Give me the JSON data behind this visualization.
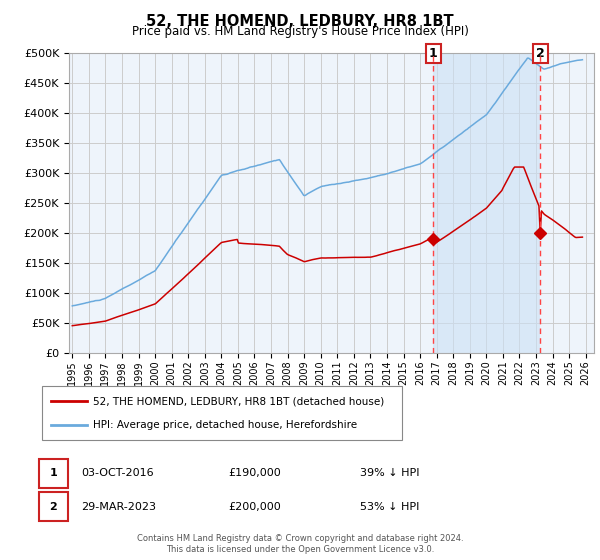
{
  "title": "52, THE HOMEND, LEDBURY, HR8 1BT",
  "subtitle": "Price paid vs. HM Land Registry's House Price Index (HPI)",
  "ylabel_ticks": [
    "£0",
    "£50K",
    "£100K",
    "£150K",
    "£200K",
    "£250K",
    "£300K",
    "£350K",
    "£400K",
    "£450K",
    "£500K"
  ],
  "ytick_values": [
    0,
    50000,
    100000,
    150000,
    200000,
    250000,
    300000,
    350000,
    400000,
    450000,
    500000
  ],
  "xlim_start": 1994.8,
  "xlim_end": 2026.5,
  "ylim_min": 0,
  "ylim_max": 500000,
  "hpi_color": "#6aaadd",
  "hpi_fill_color": "#ddeeff",
  "price_color": "#cc0000",
  "vline_color": "#ff4444",
  "grid_color": "#cccccc",
  "background_color": "#eef4fb",
  "shade_color": "#cce0f5",
  "sale1_year": 2016.8,
  "sale1_price": 190000,
  "sale1_label": "1",
  "sale2_year": 2023.25,
  "sale2_price": 200000,
  "sale2_label": "2",
  "legend_line1": "52, THE HOMEND, LEDBURY, HR8 1BT (detached house)",
  "legend_line2": "HPI: Average price, detached house, Herefordshire",
  "annotation1_date": "03-OCT-2016",
  "annotation1_price": "£190,000",
  "annotation1_pct": "39% ↓ HPI",
  "annotation2_date": "29-MAR-2023",
  "annotation2_price": "£200,000",
  "annotation2_pct": "53% ↓ HPI",
  "footer": "Contains HM Land Registry data © Crown copyright and database right 2024.\nThis data is licensed under the Open Government Licence v3.0."
}
